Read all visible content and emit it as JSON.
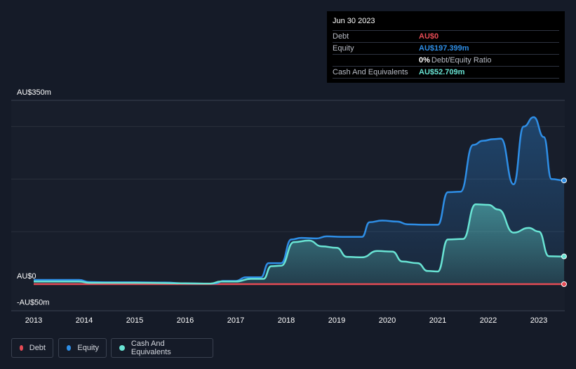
{
  "colors": {
    "background": "#151b28",
    "plot_background": "#181e2b",
    "debt": "#e64b55",
    "equity": "#2e8ee6",
    "cash": "#69e4d4",
    "grid": "#2a303d",
    "text": "#ffffff"
  },
  "tooltip": {
    "date": "Jun 30 2023",
    "rows": [
      {
        "label": "Debt",
        "value": "AU$0",
        "color": "#e64b55"
      },
      {
        "label": "Equity",
        "value": "AU$197.399m",
        "color": "#2e8ee6"
      },
      {
        "label": "",
        "value": "0%",
        "color": "#ffffff",
        "sub": "Debt/Equity Ratio"
      },
      {
        "label": "Cash And Equivalents",
        "value": "AU$52.709m",
        "color": "#69e4d4"
      }
    ]
  },
  "legend": [
    {
      "label": "Debt",
      "color": "#e64b55"
    },
    {
      "label": "Equity",
      "color": "#2e8ee6"
    },
    {
      "label": "Cash And Equivalents",
      "color": "#69e4d4"
    }
  ],
  "chart_data": {
    "type": "area",
    "title": "",
    "xlabel": "",
    "ylabel": "",
    "y_axis_labels": [
      "AU$350m",
      "AU$0",
      "-AU$50m"
    ],
    "x_tick_labels": [
      "2013",
      "2014",
      "2015",
      "2016",
      "2017",
      "2018",
      "2019",
      "2020",
      "2021",
      "2022",
      "2023"
    ],
    "x_range": [
      2013,
      2023.5
    ],
    "ylim": [
      -50,
      350
    ],
    "grid": true,
    "legend_position": "bottom-left",
    "series": [
      {
        "name": "Debt",
        "color": "#e64b55",
        "points": [
          [
            2013.0,
            0
          ],
          [
            2023.5,
            0
          ]
        ]
      },
      {
        "name": "Equity",
        "color": "#2e8ee6",
        "points": [
          [
            2013.0,
            8
          ],
          [
            2013.9,
            8
          ],
          [
            2014.1,
            4
          ],
          [
            2014.5,
            3.5
          ],
          [
            2015.0,
            3.5
          ],
          [
            2015.6,
            3
          ],
          [
            2016.0,
            1.5
          ],
          [
            2016.5,
            1
          ],
          [
            2016.6,
            1.5
          ],
          [
            2016.75,
            6
          ],
          [
            2017.0,
            6
          ],
          [
            2017.2,
            13
          ],
          [
            2017.5,
            13
          ],
          [
            2017.65,
            40
          ],
          [
            2017.9,
            40
          ],
          [
            2018.1,
            85
          ],
          [
            2018.3,
            88
          ],
          [
            2018.6,
            87
          ],
          [
            2018.8,
            91
          ],
          [
            2019.1,
            90
          ],
          [
            2019.5,
            90
          ],
          [
            2019.65,
            118
          ],
          [
            2019.9,
            121
          ],
          [
            2020.2,
            119
          ],
          [
            2020.4,
            114
          ],
          [
            2020.7,
            113
          ],
          [
            2021.0,
            113
          ],
          [
            2021.2,
            175
          ],
          [
            2021.45,
            176
          ],
          [
            2021.7,
            265
          ],
          [
            2021.9,
            273
          ],
          [
            2022.1,
            276
          ],
          [
            2022.25,
            277
          ],
          [
            2022.5,
            190
          ],
          [
            2022.7,
            300
          ],
          [
            2022.9,
            318
          ],
          [
            2023.1,
            280
          ],
          [
            2023.25,
            200
          ],
          [
            2023.5,
            197.4
          ]
        ]
      },
      {
        "name": "Cash And Equivalents",
        "color": "#69e4d4",
        "points": [
          [
            2013.0,
            5
          ],
          [
            2013.9,
            5
          ],
          [
            2014.1,
            2.5
          ],
          [
            2014.6,
            2.5
          ],
          [
            2015.0,
            2.5
          ],
          [
            2015.6,
            2
          ],
          [
            2016.0,
            1.5
          ],
          [
            2016.5,
            1
          ],
          [
            2016.7,
            5
          ],
          [
            2017.0,
            5
          ],
          [
            2017.3,
            10
          ],
          [
            2017.55,
            10
          ],
          [
            2017.7,
            34
          ],
          [
            2017.9,
            35
          ],
          [
            2018.15,
            80
          ],
          [
            2018.45,
            83
          ],
          [
            2018.7,
            72
          ],
          [
            2019.0,
            69
          ],
          [
            2019.2,
            52
          ],
          [
            2019.5,
            51
          ],
          [
            2019.8,
            63
          ],
          [
            2020.1,
            62
          ],
          [
            2020.3,
            43
          ],
          [
            2020.6,
            40
          ],
          [
            2020.8,
            25
          ],
          [
            2021.0,
            24
          ],
          [
            2021.2,
            85
          ],
          [
            2021.5,
            86
          ],
          [
            2021.75,
            152
          ],
          [
            2022.0,
            151
          ],
          [
            2022.2,
            142
          ],
          [
            2022.5,
            98
          ],
          [
            2022.8,
            107
          ],
          [
            2023.0,
            100
          ],
          [
            2023.2,
            53
          ],
          [
            2023.5,
            52.7
          ]
        ]
      }
    ]
  }
}
